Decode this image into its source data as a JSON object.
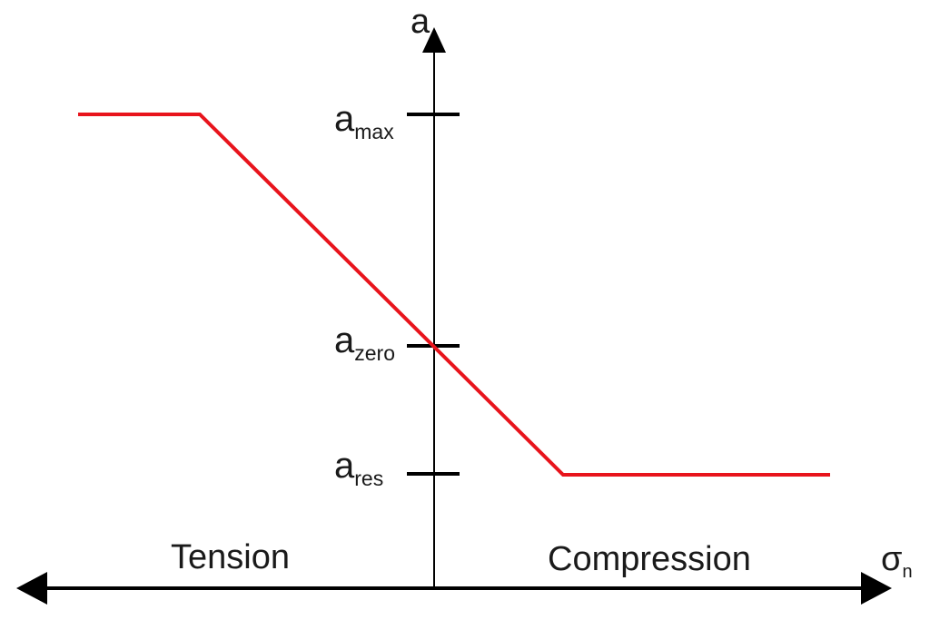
{
  "axes": {
    "y_label": "a",
    "x_label_main": "σ",
    "x_label_sub": "n",
    "region_left": "Tension",
    "region_right": "Compression"
  },
  "levels": {
    "max": {
      "main": "a",
      "sub": "max"
    },
    "zero": {
      "main": "a",
      "sub": "zero"
    },
    "res": {
      "main": "a",
      "sub": "res"
    }
  },
  "colors": {
    "curve": "#e8141c",
    "axis": "#000000"
  }
}
